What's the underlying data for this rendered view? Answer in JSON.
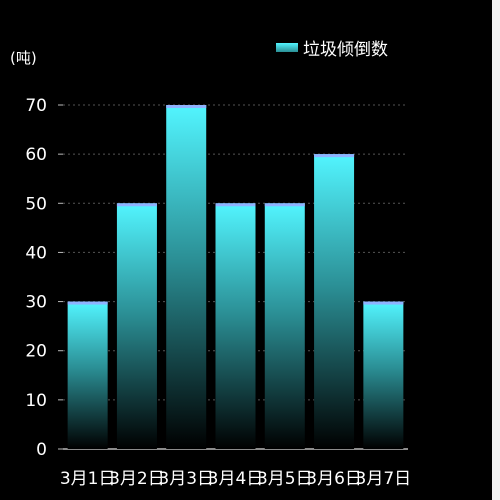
{
  "chart_data": {
    "type": "bar",
    "unit_label": "(吨)",
    "legend": "垃圾倾倒数",
    "categories": [
      "3月1日",
      "3月2日",
      "3月3日",
      "3月4日",
      "3月5日",
      "3月6日",
      "3月7日"
    ],
    "series": [
      {
        "name": "垃圾倾倒数",
        "values": [
          30,
          50,
          70,
          50,
          50,
          60,
          30
        ]
      }
    ],
    "ylim": [
      0,
      70
    ],
    "yticks": [
      0,
      10,
      20,
      30,
      40,
      50,
      60,
      70
    ],
    "grid": true,
    "legend_position": "top-right",
    "colors": {
      "bar_top": "#52f5ff",
      "bar_cap": "#8fb2ff",
      "bar_bottom": "#000000",
      "text": "#ffffff",
      "grid": "#555555"
    }
  }
}
